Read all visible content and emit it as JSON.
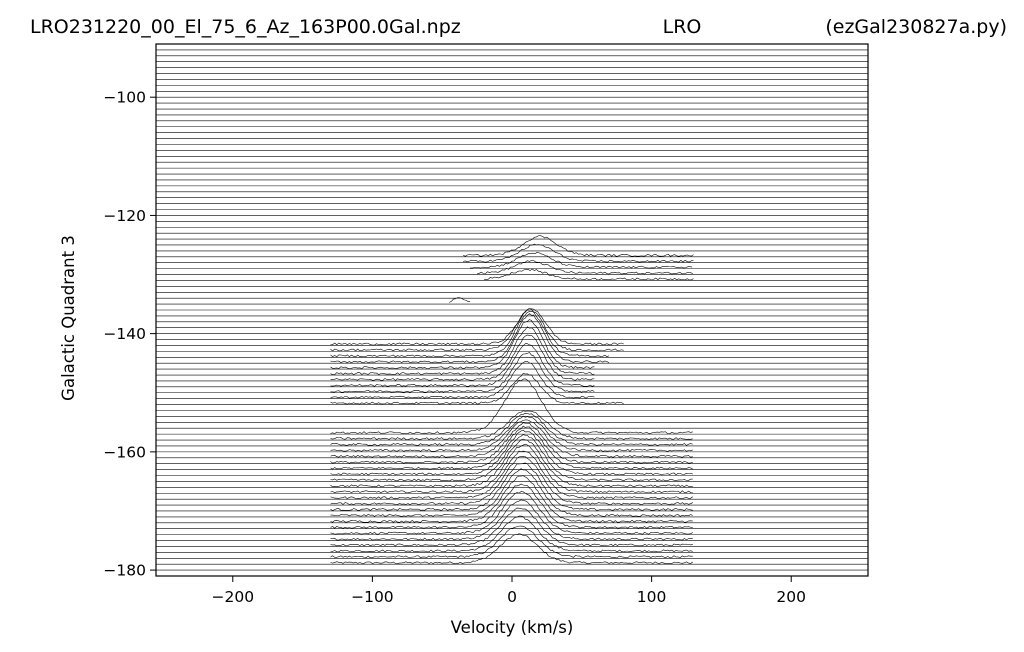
{
  "chart_data": {
    "type": "line",
    "title_left": "LRO231220_00_El_75_6_Az_163P00.0Gal.npz",
    "title_center": "LRO",
    "title_right": "(ezGal230827a.py)",
    "xlabel": "Velocity (km/s)",
    "ylabel": "Galactic Quadrant 3",
    "xlim": [
      -255,
      255
    ],
    "ylim": [
      -181,
      -91
    ],
    "xticks": [
      -200,
      -100,
      0,
      100,
      200
    ],
    "xtick_labels": [
      "−200",
      "−100",
      "0",
      "100",
      "200"
    ],
    "yticks": [
      -100,
      -120,
      -140,
      -160,
      -180
    ],
    "ytick_labels": [
      "−100",
      "−120",
      "−140",
      "−160",
      "−180"
    ],
    "grid": false,
    "line_color": "#000000",
    "trace_spacing": 1,
    "trace_offset_range": [
      -180,
      -91
    ],
    "traces_note_free": true,
    "spectra": [
      {
        "y0": -131,
        "vmin": -20,
        "vmax": 130,
        "peak_v": 12,
        "peak_h": 1.6,
        "width": 12
      },
      {
        "y0": -130,
        "vmin": -25,
        "vmax": 130,
        "peak_v": 14,
        "peak_h": 2.0,
        "width": 12
      },
      {
        "y0": -129,
        "vmin": -30,
        "vmax": 130,
        "peak_v": 16,
        "peak_h": 2.4,
        "width": 12
      },
      {
        "y0": -128,
        "vmin": -35,
        "vmax": 130,
        "peak_v": 18,
        "peak_h": 2.8,
        "width": 12
      },
      {
        "y0": -127,
        "vmin": -35,
        "vmax": 130,
        "peak_v": 20,
        "peak_h": 3.2,
        "width": 12
      },
      {
        "y0": -135,
        "vmin": -45,
        "vmax": -30,
        "peak_v": -38,
        "peak_h": 0.8,
        "width": 4
      },
      {
        "y0": -157,
        "vmin": -130,
        "vmax": 130,
        "peak_v": 8,
        "peak_h": 9.0,
        "width": 13
      },
      {
        "y0": -152,
        "vmin": -130,
        "vmax": 80,
        "peak_v": 10,
        "peak_h": 5.0,
        "width": 10
      },
      {
        "y0": -151,
        "vmin": -130,
        "vmax": 60,
        "peak_v": 10,
        "peak_h": 6.0,
        "width": 10
      },
      {
        "y0": -150,
        "vmin": -130,
        "vmax": 60,
        "peak_v": 11,
        "peak_h": 6.5,
        "width": 10
      },
      {
        "y0": -149,
        "vmin": -130,
        "vmax": 60,
        "peak_v": 11,
        "peak_h": 7.0,
        "width": 10
      },
      {
        "y0": -148,
        "vmin": -130,
        "vmax": 60,
        "peak_v": 12,
        "peak_h": 7.5,
        "width": 10
      },
      {
        "y0": -147,
        "vmin": -130,
        "vmax": 60,
        "peak_v": 12,
        "peak_h": 7.8,
        "width": 10
      },
      {
        "y0": -146,
        "vmin": -130,
        "vmax": 60,
        "peak_v": 12,
        "peak_h": 8.0,
        "width": 10
      },
      {
        "y0": -145,
        "vmin": -130,
        "vmax": 70,
        "peak_v": 13,
        "peak_h": 8.0,
        "width": 10
      },
      {
        "y0": -144,
        "vmin": -130,
        "vmax": 70,
        "peak_v": 13,
        "peak_h": 7.5,
        "width": 10
      },
      {
        "y0": -143,
        "vmin": -130,
        "vmax": 80,
        "peak_v": 13,
        "peak_h": 6.8,
        "width": 10
      },
      {
        "y0": -142,
        "vmin": -130,
        "vmax": 80,
        "peak_v": 14,
        "peak_h": 6.0,
        "width": 10
      }
    ],
    "lower_block": {
      "y_start": -179,
      "y_end": -158,
      "vmin": -130,
      "vmax": 130,
      "peak_v": 5,
      "peak_h": 8.0,
      "width": 13
    }
  }
}
